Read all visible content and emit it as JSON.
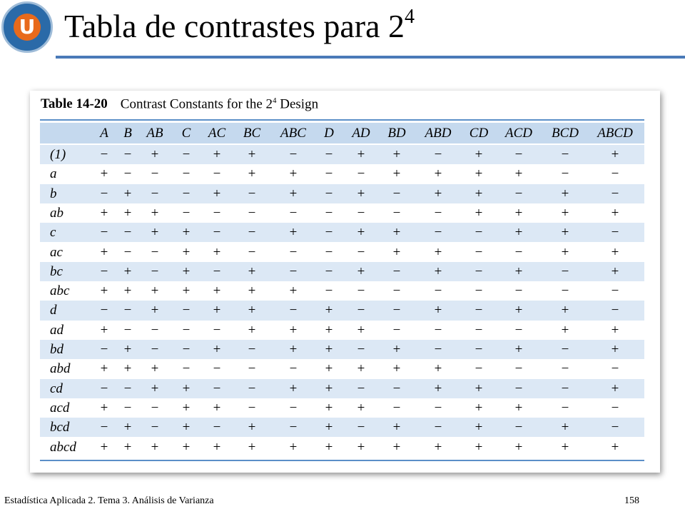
{
  "header": {
    "title": "Tabla de contrastes para 2",
    "title_superscript": "4",
    "logo_letter": "U"
  },
  "table": {
    "label": "Table 14-20",
    "caption": "Contrast Constants for the 2",
    "caption_superscript": "4",
    "caption_end": " Design",
    "columns": [
      "A",
      "B",
      "AB",
      "C",
      "AC",
      "BC",
      "ABC",
      "D",
      "AD",
      "BD",
      "ABD",
      "CD",
      "ACD",
      "BCD",
      "ABCD"
    ],
    "rows": [
      [
        "(1)",
        "−",
        "−",
        "+",
        "−",
        "+",
        "+",
        "−",
        "−",
        "+",
        "+",
        "−",
        "+",
        "−",
        "−",
        "+"
      ],
      [
        "a",
        "+",
        "−",
        "−",
        "−",
        "−",
        "+",
        "+",
        "−",
        "−",
        "+",
        "+",
        "+",
        "+",
        "−",
        "−"
      ],
      [
        "b",
        "−",
        "+",
        "−",
        "−",
        "+",
        "−",
        "+",
        "−",
        "+",
        "−",
        "+",
        "+",
        "−",
        "+",
        "−"
      ],
      [
        "ab",
        "+",
        "+",
        "+",
        "−",
        "−",
        "−",
        "−",
        "−",
        "−",
        "−",
        "−",
        "+",
        "+",
        "+",
        "+"
      ],
      [
        "c",
        "−",
        "−",
        "+",
        "+",
        "−",
        "−",
        "+",
        "−",
        "+",
        "+",
        "−",
        "−",
        "+",
        "+",
        "−"
      ],
      [
        "ac",
        "+",
        "−",
        "−",
        "+",
        "+",
        "−",
        "−",
        "−",
        "−",
        "+",
        "+",
        "−",
        "−",
        "+",
        "+"
      ],
      [
        "bc",
        "−",
        "+",
        "−",
        "+",
        "−",
        "+",
        "−",
        "−",
        "+",
        "−",
        "+",
        "−",
        "+",
        "−",
        "+"
      ],
      [
        "abc",
        "+",
        "+",
        "+",
        "+",
        "+",
        "+",
        "+",
        "−",
        "−",
        "−",
        "−",
        "−",
        "−",
        "−",
        "−"
      ],
      [
        "d",
        "−",
        "−",
        "+",
        "−",
        "+",
        "+",
        "−",
        "+",
        "−",
        "−",
        "+",
        "−",
        "+",
        "+",
        "−"
      ],
      [
        "ad",
        "+",
        "−",
        "−",
        "−",
        "−",
        "+",
        "+",
        "+",
        "+",
        "−",
        "−",
        "−",
        "−",
        "+",
        "+"
      ],
      [
        "bd",
        "−",
        "+",
        "−",
        "−",
        "+",
        "−",
        "+",
        "+",
        "−",
        "+",
        "−",
        "−",
        "+",
        "−",
        "+"
      ],
      [
        "abd",
        "+",
        "+",
        "+",
        "−",
        "−",
        "−",
        "−",
        "+",
        "+",
        "+",
        "+",
        "−",
        "−",
        "−",
        "−"
      ],
      [
        "cd",
        "−",
        "−",
        "+",
        "+",
        "−",
        "−",
        "+",
        "+",
        "−",
        "−",
        "+",
        "+",
        "−",
        "−",
        "+"
      ],
      [
        "acd",
        "+",
        "−",
        "−",
        "+",
        "+",
        "−",
        "−",
        "+",
        "+",
        "−",
        "−",
        "+",
        "+",
        "−",
        "−"
      ],
      [
        "bcd",
        "−",
        "+",
        "−",
        "+",
        "−",
        "+",
        "−",
        "+",
        "−",
        "+",
        "−",
        "+",
        "−",
        "+",
        "−"
      ],
      [
        "abcd",
        "+",
        "+",
        "+",
        "+",
        "+",
        "+",
        "+",
        "+",
        "+",
        "+",
        "+",
        "+",
        "+",
        "+",
        "+"
      ]
    ]
  },
  "footer": {
    "course": "Estadística Aplicada 2. Tema 3. Análisis de Varianza",
    "page": "158"
  }
}
